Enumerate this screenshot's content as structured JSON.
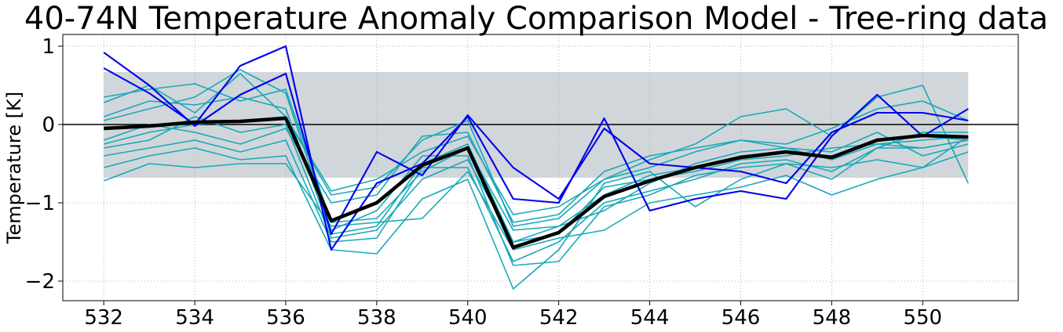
{
  "chart_data": {
    "type": "line",
    "title": "40-74N Temperature Anomaly Comparison Model - Tree-ring data",
    "xlabel": "",
    "ylabel": "Temperature [K]",
    "xlim": [
      531.1,
      552.1
    ],
    "ylim": [
      -2.25,
      1.15
    ],
    "xticks": [
      532,
      534,
      536,
      538,
      540,
      542,
      544,
      546,
      548,
      550
    ],
    "yticks": [
      1,
      0,
      -1,
      -2
    ],
    "ytick_labels": [
      "1",
      "0",
      "−1",
      "−2"
    ],
    "grid": true,
    "shaded_band": {
      "y0": -0.68,
      "y1": 0.67,
      "color": "#d1d6db"
    },
    "zero_line": {
      "y": 0,
      "color": "#000000"
    },
    "x": [
      532,
      533,
      534,
      535,
      536,
      537,
      538,
      539,
      540,
      541,
      542,
      543,
      544,
      545,
      546,
      547,
      548,
      549,
      550,
      551
    ],
    "series": [
      {
        "group": "model",
        "color": "#17a9b8",
        "values": [
          0.35,
          0.45,
          0.52,
          0.3,
          0.45,
          -1.25,
          -1.2,
          -0.6,
          -0.3,
          -1.35,
          -1.3,
          -0.9,
          -0.65,
          -0.55,
          -0.4,
          -0.35,
          -0.4,
          -0.2,
          -0.15,
          -0.2
        ]
      },
      {
        "group": "model",
        "color": "#17a9b8",
        "values": [
          0.1,
          0.3,
          0.25,
          0.35,
          0.2,
          -1.4,
          -1.3,
          -0.5,
          -0.25,
          -1.5,
          -1.4,
          -0.8,
          -0.7,
          -0.6,
          -0.45,
          -0.4,
          -0.3,
          -0.25,
          -0.2,
          -0.15
        ]
      },
      {
        "group": "model",
        "color": "#17a9b8",
        "values": [
          -0.25,
          -0.1,
          0.0,
          0.05,
          0.1,
          -0.85,
          -0.7,
          -0.35,
          -0.15,
          -1.15,
          -1.05,
          -0.7,
          -0.55,
          -0.35,
          -0.2,
          -0.25,
          -0.05,
          0.2,
          0.3,
          0.05
        ]
      },
      {
        "group": "model",
        "color": "#17a9b8",
        "values": [
          -0.4,
          -0.3,
          -0.2,
          -0.35,
          -0.2,
          -1.5,
          -1.45,
          -0.55,
          -0.55,
          -1.75,
          -1.5,
          -1.0,
          -0.85,
          -0.7,
          -0.5,
          -0.45,
          -0.6,
          -0.3,
          -0.3,
          -0.2
        ]
      },
      {
        "group": "model",
        "color": "#17a9b8",
        "values": [
          -0.55,
          -0.4,
          -0.3,
          -0.45,
          -0.4,
          -1.6,
          -1.65,
          -0.95,
          -0.7,
          -2.1,
          -1.6,
          -0.75,
          -0.6,
          -1.05,
          -0.7,
          -0.5,
          -0.55,
          -0.45,
          -0.55,
          -0.15
        ]
      },
      {
        "group": "model",
        "color": "#17a9b8",
        "values": [
          -0.72,
          -0.5,
          -0.55,
          -0.5,
          -0.5,
          -1.3,
          -1.25,
          -1.2,
          -0.6,
          -1.6,
          -1.45,
          -1.35,
          -1.0,
          -0.9,
          -0.8,
          -0.65,
          -0.9,
          -0.7,
          -0.55,
          -0.35
        ]
      },
      {
        "group": "model",
        "color": "#17a9b8",
        "values": [
          0.28,
          0.5,
          0.15,
          0.65,
          0.1,
          -0.9,
          -0.8,
          -0.2,
          0.05,
          -1.3,
          -1.2,
          -0.7,
          -0.45,
          -0.25,
          0.1,
          0.2,
          -0.15,
          0.35,
          0.5,
          -0.75
        ]
      },
      {
        "group": "model",
        "color": "#17a9b8",
        "values": [
          -0.2,
          0.0,
          -0.1,
          -0.25,
          -0.05,
          -1.0,
          -0.9,
          -0.15,
          -0.1,
          -1.25,
          -1.15,
          -0.6,
          -0.4,
          -0.3,
          -0.2,
          -0.3,
          -0.35,
          -0.1,
          -0.4,
          -0.25
        ]
      },
      {
        "group": "model",
        "color": "#17a9b8",
        "values": [
          0.05,
          0.2,
          0.35,
          0.7,
          0.4,
          -1.35,
          -1.1,
          -0.4,
          -0.4,
          -1.8,
          -1.75,
          -1.05,
          -0.9,
          -0.65,
          -0.55,
          -0.5,
          -0.7,
          -0.3,
          -0.1,
          -0.1
        ]
      },
      {
        "group": "model",
        "color": "#17a9b8",
        "values": [
          -0.3,
          -0.2,
          0.1,
          -0.1,
          0.0,
          -1.45,
          -1.35,
          -0.7,
          -0.45,
          -1.5,
          -1.3,
          -1.1,
          -0.75,
          -0.5,
          -0.35,
          -0.3,
          -0.45,
          -0.25,
          -0.3,
          -0.2
        ]
      },
      {
        "group": "data",
        "color": "#0000ee",
        "values": [
          0.92,
          0.5,
          -0.02,
          0.38,
          0.65,
          -1.4,
          -0.35,
          -0.65,
          0.12,
          -0.55,
          -0.95,
          -0.05,
          -0.5,
          -0.55,
          -0.6,
          -0.75,
          -0.1,
          0.15,
          0.15,
          0.05
        ]
      },
      {
        "group": "data",
        "color": "#0000ee",
        "values": [
          0.72,
          0.4,
          0.0,
          0.75,
          1.0,
          -1.6,
          -0.75,
          -0.5,
          0.1,
          -0.95,
          -1.0,
          0.08,
          -1.1,
          -0.95,
          -0.85,
          -0.95,
          -0.15,
          0.38,
          -0.15,
          0.2
        ]
      },
      {
        "group": "mean",
        "color": "#000000",
        "values": [
          -0.05,
          -0.02,
          0.03,
          0.04,
          0.08,
          -1.23,
          -1.0,
          -0.52,
          -0.3,
          -1.57,
          -1.38,
          -0.92,
          -0.72,
          -0.55,
          -0.42,
          -0.35,
          -0.42,
          -0.2,
          -0.14,
          -0.16
        ]
      }
    ]
  }
}
